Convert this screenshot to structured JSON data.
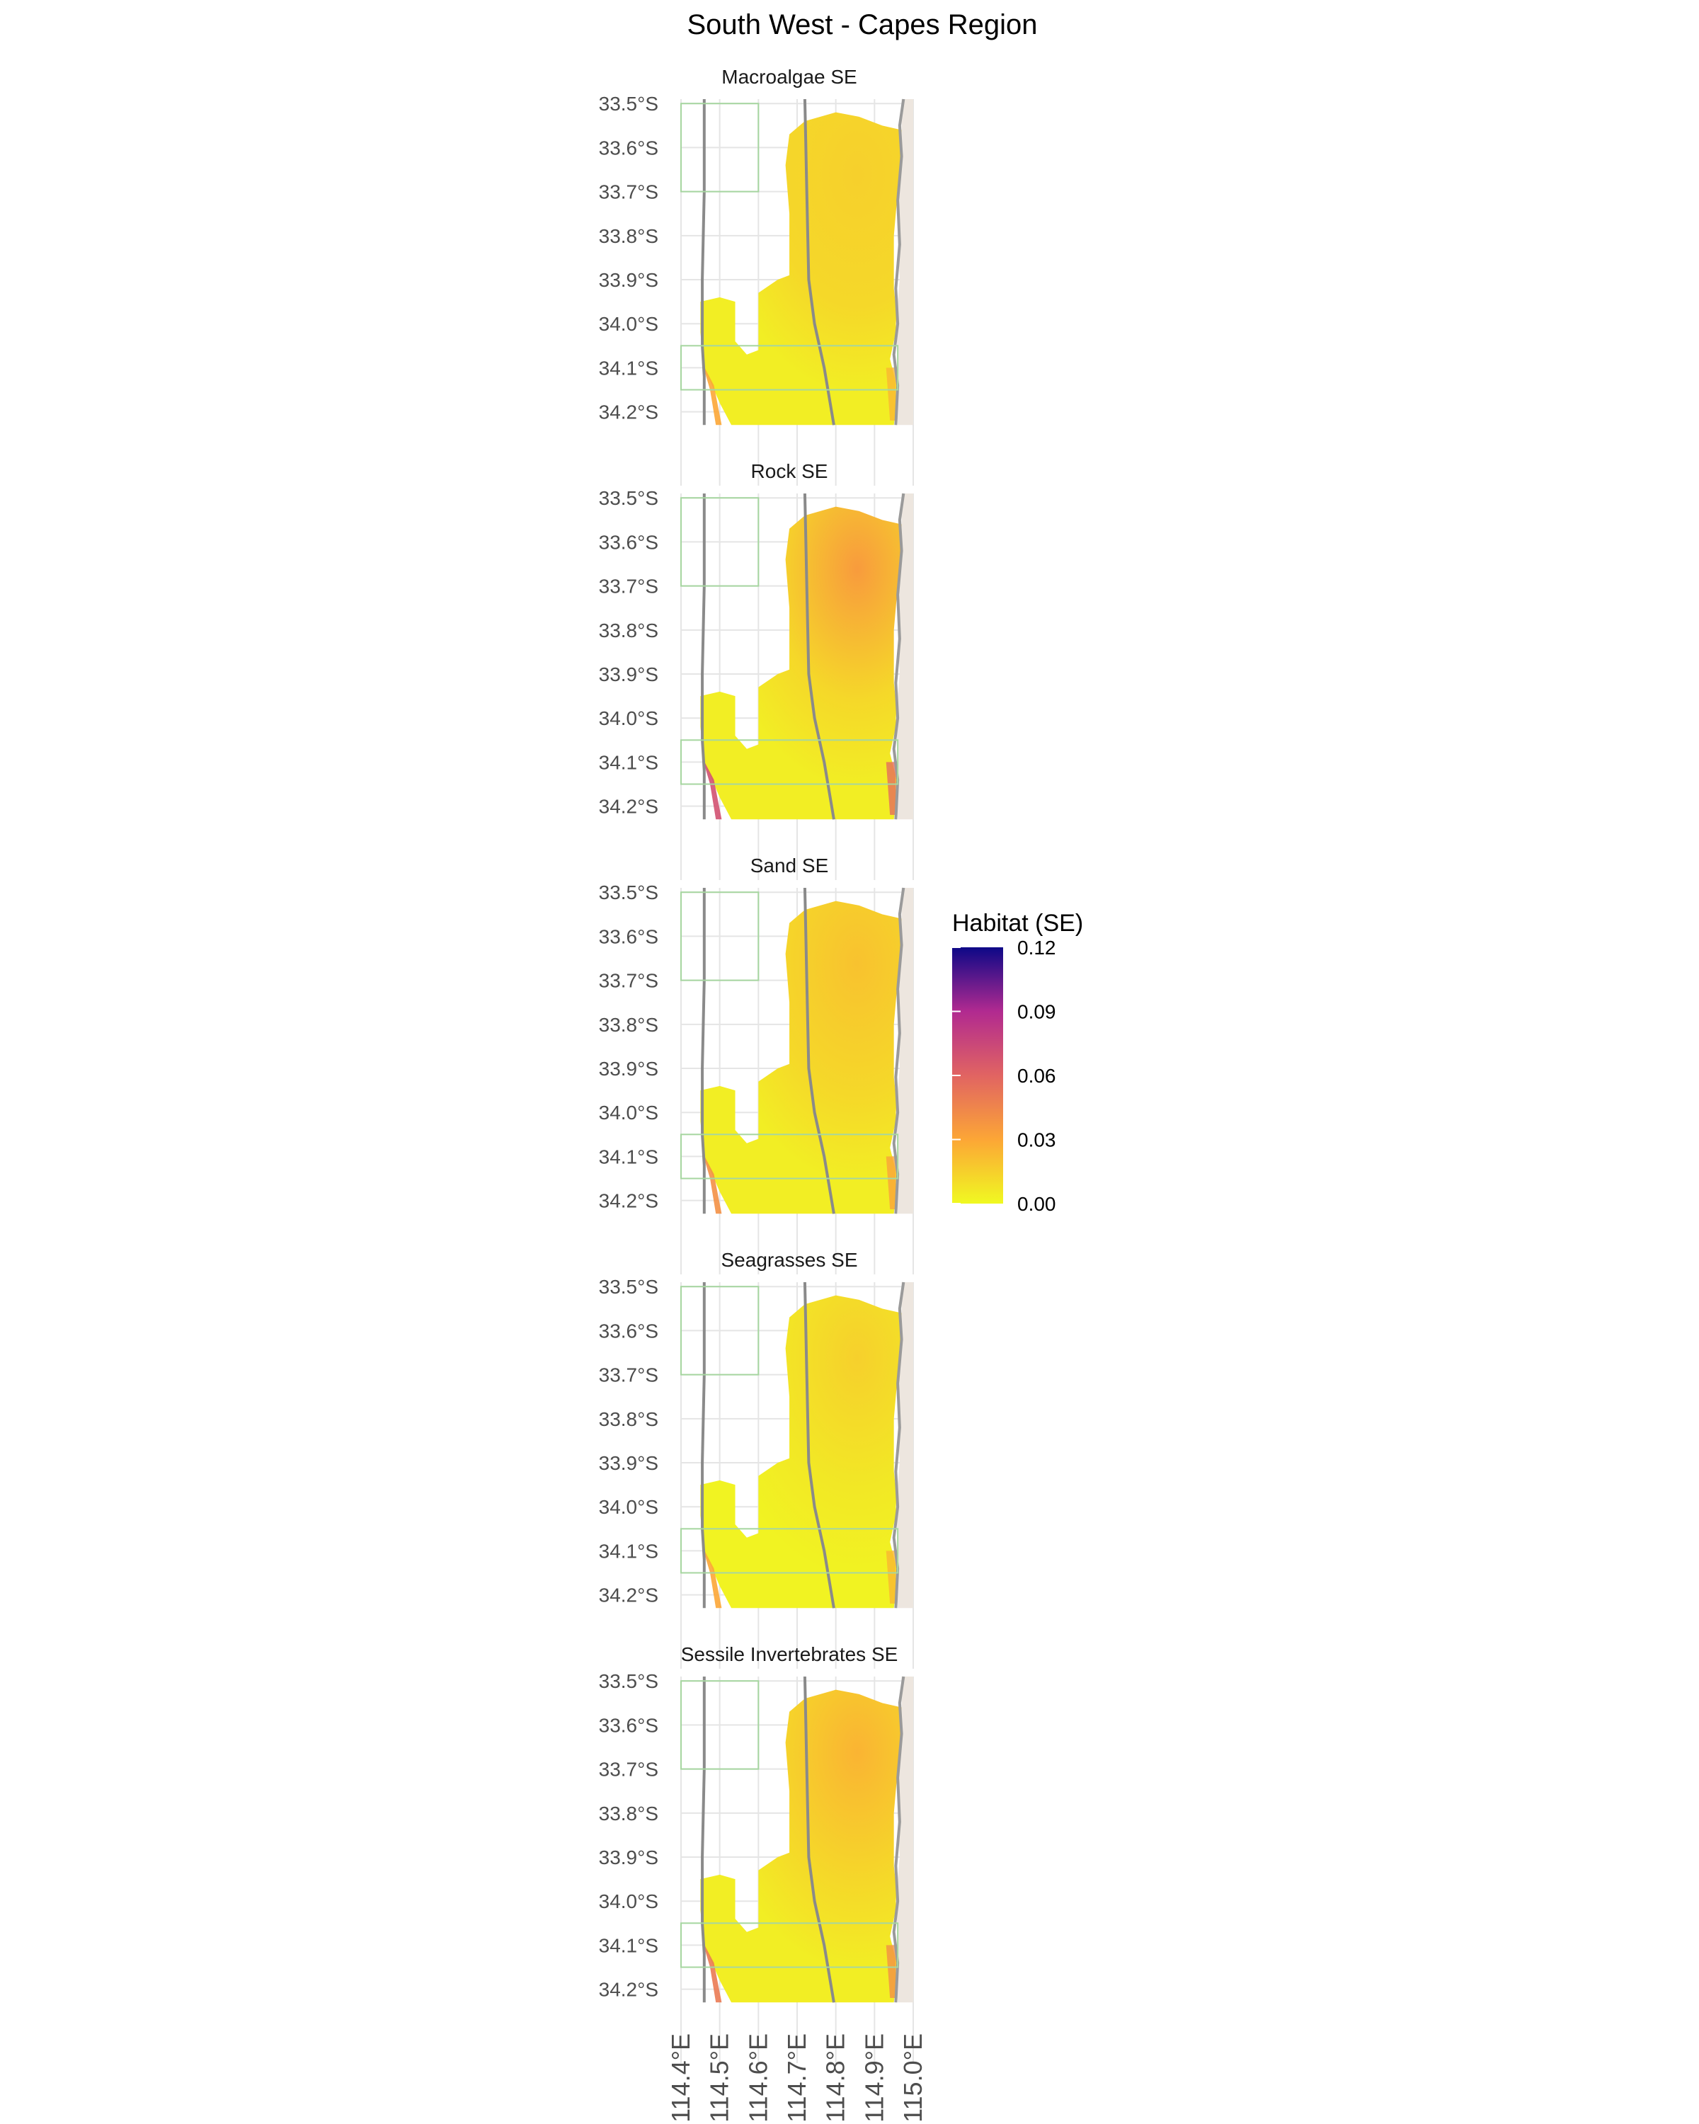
{
  "title": "South West - Capes Region",
  "colors": {
    "land": "#ede6df",
    "coast": "#9a9a9a",
    "contour": "#8a8a8a",
    "box": "#a6d6a0",
    "grid": "#e5e5e5",
    "scale_low": "#f0f921",
    "scale_mid1": "#fca636",
    "scale_mid2": "#e16462",
    "scale_mid3": "#b12a90",
    "scale_high": "#0d0887"
  },
  "legend": {
    "title": "Habitat (SE)",
    "position": "right",
    "range": [
      0,
      0.12
    ],
    "ticks": [
      "0.12",
      "0.09",
      "0.06",
      "0.03",
      "0.00"
    ]
  },
  "chart_data": {
    "type": "heatmap",
    "title": "South West - Capes Region",
    "xlabel": "",
    "ylabel": "",
    "x_ticks": [
      "114.4°E",
      "114.5°E",
      "114.6°E",
      "114.7°E",
      "114.8°E",
      "114.9°E",
      "115.0°E"
    ],
    "y_ticks": [
      "33.5°S",
      "33.6°S",
      "33.7°S",
      "33.8°S",
      "33.9°S",
      "34.0°S",
      "34.1°S",
      "34.2°S"
    ],
    "xlim": [
      114.4,
      115.0
    ],
    "ylim": [
      -34.23,
      -33.49
    ],
    "grid": true,
    "legend_placement": "right",
    "panels": [
      {
        "name": "Macroalgae SE",
        "base_se": 0.01,
        "hotspot_se": 0.03
      },
      {
        "name": "Rock SE",
        "base_se": 0.01,
        "hotspot_se": 0.07
      },
      {
        "name": "Sand SE",
        "base_se": 0.01,
        "hotspot_se": 0.04
      },
      {
        "name": "Seagrasses SE",
        "base_se": 0.005,
        "hotspot_se": 0.03
      },
      {
        "name": "Sessile Invertebrates SE",
        "base_se": 0.01,
        "hotspot_se": 0.05
      }
    ]
  }
}
